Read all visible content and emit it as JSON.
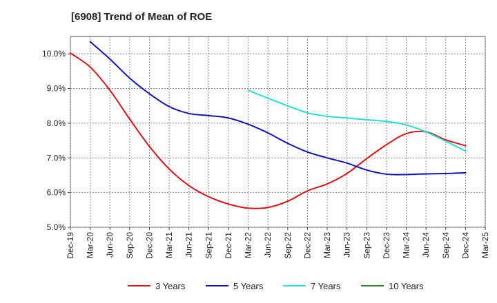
{
  "chart_data": {
    "type": "line",
    "title": "[6908]  Trend of Mean of ROE",
    "xlabel": "",
    "ylabel": "",
    "x_tick_labels": [
      "Dec-19",
      "Mar-20",
      "Jun-20",
      "Sep-20",
      "Dec-20",
      "Mar-21",
      "Jun-21",
      "Sep-21",
      "Dec-21",
      "Mar-22",
      "Jun-22",
      "Sep-22",
      "Dec-22",
      "Mar-23",
      "Jun-23",
      "Sep-23",
      "Dec-23",
      "Mar-24",
      "Jun-24",
      "Sep-24",
      "Dec-24",
      "Mar-25"
    ],
    "y_tick_labels": [
      "5.0%",
      "6.0%",
      "7.0%",
      "8.0%",
      "9.0%",
      "10.0%"
    ],
    "ylim": [
      5.0,
      10.5
    ],
    "grid": true,
    "legend_position": "bottom",
    "series": [
      {
        "name": "3 Years",
        "color": "#dd1111",
        "points": [
          [
            "Dec-19",
            10.02
          ],
          [
            "Mar-20",
            9.62
          ],
          [
            "Jun-20",
            8.95
          ],
          [
            "Sep-20",
            8.12
          ],
          [
            "Dec-20",
            7.33
          ],
          [
            "Mar-21",
            6.68
          ],
          [
            "Jun-21",
            6.2
          ],
          [
            "Sep-21",
            5.88
          ],
          [
            "Dec-21",
            5.67
          ],
          [
            "Mar-22",
            5.55
          ],
          [
            "Jun-22",
            5.57
          ],
          [
            "Sep-22",
            5.75
          ],
          [
            "Dec-22",
            6.05
          ],
          [
            "Mar-23",
            6.25
          ],
          [
            "Jun-23",
            6.55
          ],
          [
            "Sep-23",
            6.98
          ],
          [
            "Dec-23",
            7.38
          ],
          [
            "Mar-24",
            7.7
          ],
          [
            "Jun-24",
            7.75
          ],
          [
            "Sep-24",
            7.52
          ],
          [
            "Dec-24",
            7.35
          ]
        ]
      },
      {
        "name": "5 Years",
        "color": "#1111bb",
        "points": [
          [
            "Mar-20",
            10.35
          ],
          [
            "Jun-20",
            9.85
          ],
          [
            "Sep-20",
            9.3
          ],
          [
            "Dec-20",
            8.85
          ],
          [
            "Mar-21",
            8.48
          ],
          [
            "Jun-21",
            8.28
          ],
          [
            "Sep-21",
            8.22
          ],
          [
            "Dec-21",
            8.15
          ],
          [
            "Mar-22",
            7.97
          ],
          [
            "Jun-22",
            7.72
          ],
          [
            "Sep-22",
            7.42
          ],
          [
            "Dec-22",
            7.17
          ],
          [
            "Mar-23",
            7.0
          ],
          [
            "Jun-23",
            6.85
          ],
          [
            "Sep-23",
            6.65
          ],
          [
            "Dec-23",
            6.53
          ],
          [
            "Mar-24",
            6.52
          ],
          [
            "Jun-24",
            6.54
          ],
          [
            "Sep-24",
            6.55
          ],
          [
            "Dec-24",
            6.57
          ]
        ]
      },
      {
        "name": "7 Years",
        "color": "#22dddd",
        "points": [
          [
            "Mar-22",
            8.95
          ],
          [
            "Jun-22",
            8.72
          ],
          [
            "Sep-22",
            8.5
          ],
          [
            "Dec-22",
            8.3
          ],
          [
            "Mar-23",
            8.2
          ],
          [
            "Jun-23",
            8.15
          ],
          [
            "Sep-23",
            8.1
          ],
          [
            "Dec-23",
            8.05
          ],
          [
            "Mar-24",
            7.95
          ],
          [
            "Jun-24",
            7.75
          ],
          [
            "Sep-24",
            7.48
          ],
          [
            "Dec-24",
            7.2
          ]
        ]
      },
      {
        "name": "10 Years",
        "color": "#228822",
        "points": []
      }
    ]
  }
}
